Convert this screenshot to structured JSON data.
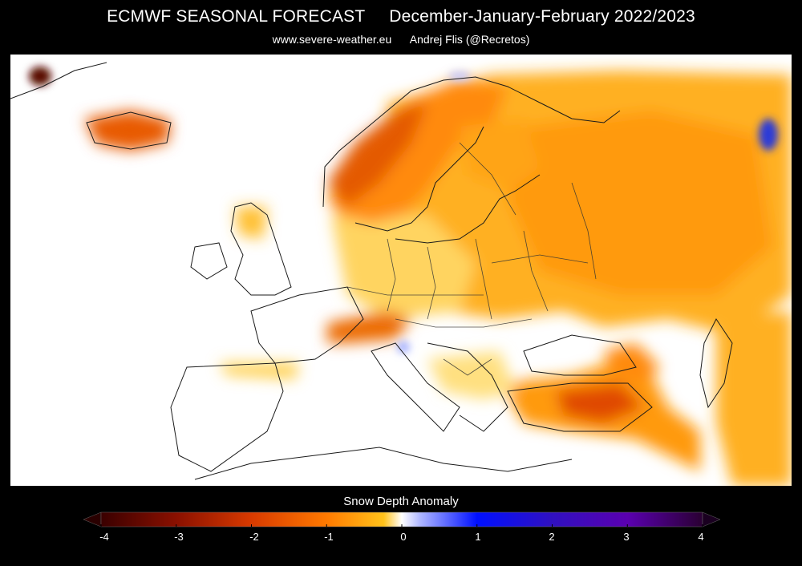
{
  "header": {
    "title": "ECMWF SEASONAL FORECAST     December-January-February 2022/2023",
    "credits": "www.severe-weather.eu      Andrej Flis (@Recretos)"
  },
  "map": {
    "region": "Europe",
    "variable": "Snow Depth Anomaly",
    "background_color": "#ffffff",
    "border_color": "#1a1a1a"
  },
  "legend": {
    "title": "Snow Depth Anomaly",
    "range": [
      -4,
      4
    ],
    "ticks": [
      "-4",
      "-3",
      "-2",
      "-1",
      "0",
      "1",
      "2",
      "3",
      "4"
    ],
    "colors": [
      "#3a0000",
      "#8a1000",
      "#d83a00",
      "#ff7a00",
      "#ffc21a",
      "#ffffff",
      "#0010ff",
      "#5a00b0",
      "#2a0032"
    ]
  }
}
